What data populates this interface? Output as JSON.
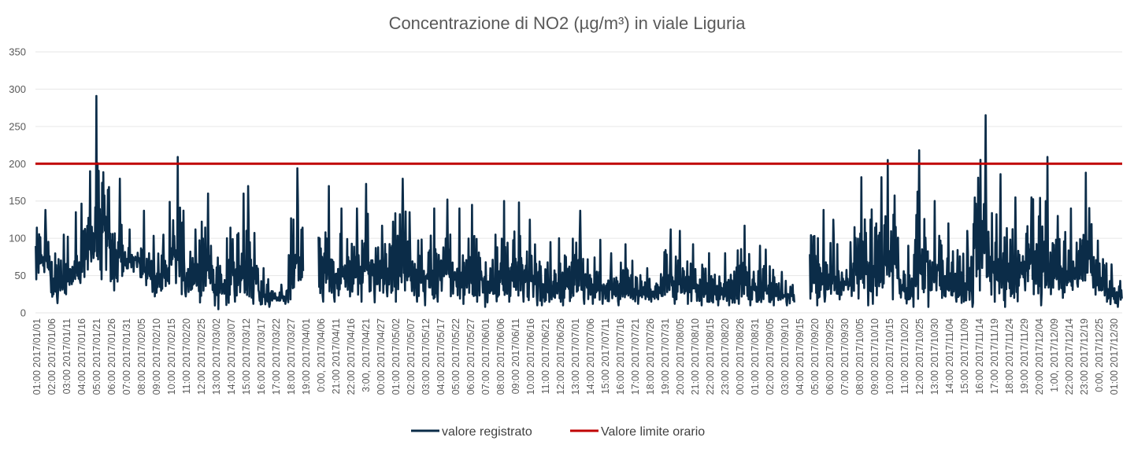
{
  "chart_data": {
    "type": "line",
    "title": "Concentrazione di NO2 (µg/m³) in viale Liguria",
    "xlabel": "",
    "ylabel": "",
    "ylim": [
      0,
      350
    ],
    "yticks": [
      0,
      50,
      100,
      150,
      200,
      250,
      300,
      350
    ],
    "grid": true,
    "legend_position": "bottom",
    "categories": [
      "01:00 2017/01/01",
      "02:00 2017/01/06",
      "03:00 2017/01/11",
      "04:00 2017/01/16",
      "05:00 2017/01/21",
      "06:00 2017/01/26",
      "07:00 2017/01/31",
      "08:00 2017/02/05",
      "09:00 2017/02/10",
      "10:00 2017/02/15",
      "11:00 2017/02/20",
      "12:00 2017/02/25",
      "13:00 2017/03/02",
      "14:00 2017/03/07",
      "15:00 2017/03/12",
      "16:00 2017/03/17",
      "17:00 2017/03/22",
      "18:00 2017/03/27",
      "19:00 2017/04/01",
      "0:00, 2017/04/06",
      "21:00 2017/04/11",
      "22:00 2017/04/16",
      "3:00, 2017/04/21",
      "00:00 2017/04/27",
      "01:00 2017/05/02",
      "02:00 2017/05/07",
      "03:00 2017/05/12",
      "04:00 2017/05/17",
      "05:00 2017/05/22",
      "06:00 2017/05/27",
      "07:00 2017/06/01",
      "08:00 2017/06/06",
      "09:00 2017/06/11",
      "10:00 2017/06/16",
      "11:00 2017/06/21",
      "12:00 2017/06/26",
      "13:00 2017/07/01",
      "14:00 2017/07/06",
      "15:00 2017/07/11",
      "16:00 2017/07/16",
      "17:00 2017/07/21",
      "18:00 2017/07/26",
      "19:00 2017/07/31",
      "20:00 2017/08/05",
      "21:00 2017/08/10",
      "22:00 2017/08/15",
      "23:00 2017/08/20",
      "00:00 2017/08/26",
      "01:00 2017/08/31",
      "02:00 2017/09/05",
      "03:00 2017/09/10",
      "04:00 2017/09/15",
      "05:00 2017/09/20",
      "06:00 2017/09/25",
      "07:00 2017/09/30",
      "08:00 2017/10/05",
      "09:00 2017/10/10",
      "10:00 2017/10/15",
      "11:00 2017/10/20",
      "12:00 2017/10/25",
      "13:00 2017/10/30",
      "14:00 2017/11/04",
      "15:00 2017/11/09",
      "16:00 2017/11/14",
      "17:00 2017/11/19",
      "18:00 2017/11/24",
      "19:00 2017/11/29",
      "20:00 2017/12/04",
      "1:00, 2017/12/09",
      "22:00 2017/12/14",
      "23:00 2017/12/19",
      "0:00, 2017/12/25",
      "01:00 2017/12/30"
    ],
    "series": [
      {
        "name": "valore registrato",
        "color": "#0b2c48",
        "note_values": "per-interval (5-day) max/min envelope of hourly values; null = missing data",
        "max": [
          138,
          105,
          135,
          190,
          291,
          180,
          112,
          137,
          105,
          209,
          112,
          160,
          100,
          160,
          170,
          60,
          38,
          194,
          null,
          170,
          140,
          140,
          173,
          117,
          180,
          135,
          140,
          152,
          140,
          145,
          105,
          150,
          148,
          125,
          95,
          100,
          137,
          98,
          80,
          92,
          70,
          60,
          112,
          110,
          92,
          80,
          80,
          117,
          90,
          85,
          55,
          null,
          138,
          125,
          95,
          182,
          182,
          205,
          90,
          218,
          150,
          120,
          110,
          265,
          186,
          155,
          155,
          209,
          130,
          140,
          188,
          97,
          65
        ],
        "min": [
          45,
          13,
          25,
          40,
          45,
          30,
          55,
          28,
          22,
          25,
          22,
          14,
          5,
          15,
          12,
          8,
          12,
          18,
          null,
          15,
          15,
          15,
          14,
          22,
          15,
          15,
          10,
          15,
          12,
          15,
          8,
          15,
          15,
          10,
          10,
          10,
          12,
          12,
          12,
          10,
          12,
          15,
          12,
          12,
          10,
          10,
          10,
          12,
          10,
          10,
          10,
          null,
          10,
          15,
          18,
          10,
          12,
          18,
          8,
          8,
          20,
          15,
          8,
          30,
          15,
          8,
          30,
          10,
          25,
          20,
          35,
          15,
          8
        ]
      },
      {
        "name": "Valore limite orario",
        "color": "#c00000",
        "value": 200
      }
    ]
  }
}
